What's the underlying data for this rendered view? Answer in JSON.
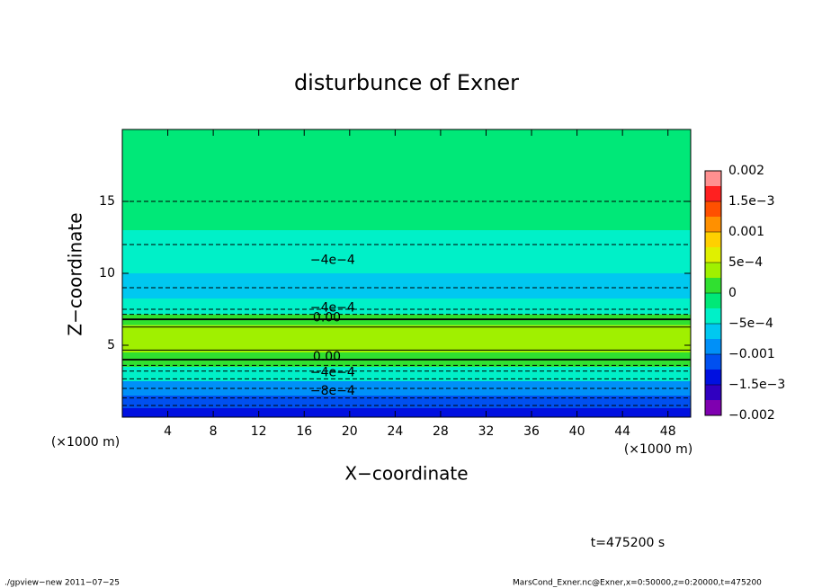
{
  "chart_data": {
    "type": "contour",
    "title": "disturbunce of Exner",
    "xlabel": "X−coordinate",
    "ylabel": "Z−coordinate",
    "x_unit": "(×1000 m)",
    "x_unit_right": "(×1000 m)",
    "time_label": "t=475200 s",
    "xlim": [
      0,
      50
    ],
    "ylim": [
      0,
      20
    ],
    "xticks": [
      4,
      8,
      12,
      16,
      20,
      24,
      28,
      32,
      36,
      40,
      44,
      48
    ],
    "yticks": [
      5,
      10,
      15
    ],
    "field": {
      "z": [
        0.25,
        1,
        2,
        3,
        4,
        5,
        6,
        6.8,
        7.5,
        9,
        11,
        12,
        14,
        17,
        19.5
      ],
      "values": [
        -0.0015,
        -0.0011,
        -0.0008,
        -0.0005,
        0,
        0.0003,
        0.0003,
        0,
        -0.0004,
        -0.0006,
        -0.0005,
        -0.0004,
        -0.00025,
        -0.0001,
        -0.0001
      ]
    },
    "clim": [
      -0.002,
      0.002
    ],
    "colorbar_colors": [
      "#7f00b0",
      "#3000c0",
      "#0010e0",
      "#0050f0",
      "#0090f8",
      "#00c8f0",
      "#00f0c8",
      "#00e878",
      "#30e030",
      "#a0f000",
      "#e0f000",
      "#ffd000",
      "#ff9000",
      "#ff5000",
      "#ff2020",
      "#ff9090"
    ],
    "colorbar_ticks": [
      {
        "value": -0.002,
        "label": "−0.002"
      },
      {
        "value": -0.0015,
        "label": "−1.5e−3"
      },
      {
        "value": -0.001,
        "label": "−0.001"
      },
      {
        "value": -0.0005,
        "label": "−5e−4"
      },
      0,
      {
        "value": 0.0005,
        "label": "5e−4"
      },
      0.001,
      {
        "value": 0.0015,
        "label": "1.5e−3"
      },
      0.002
    ],
    "contour_levels": [
      -0.0012,
      -0.001,
      -0.0008,
      -0.0006,
      -0.0004,
      -0.0002,
      0,
      0.0002
    ],
    "contour_labels": [
      {
        "label": "−4e−4",
        "value": -0.0004,
        "x": 18.5,
        "z": 10.9
      },
      {
        "label": "−4e−4",
        "value": -0.0004,
        "x": 18.5,
        "z": 7.6
      },
      {
        "label": "0.00",
        "value": 0,
        "x": 18,
        "z": 6.9
      },
      {
        "label": "0.00",
        "value": 0,
        "x": 18,
        "z": 4.2
      },
      {
        "label": "−4e−4",
        "value": -0.0004,
        "x": 18.5,
        "z": 3.1
      },
      {
        "label": "−8e−4",
        "value": -0.0008,
        "x": 18.5,
        "z": 1.8
      }
    ]
  },
  "footer": {
    "left": "./gpview−new   2011−07−25",
    "right": "MarsCond_Exner.nc@Exner,x=0:50000,z=0:20000,t=475200"
  }
}
